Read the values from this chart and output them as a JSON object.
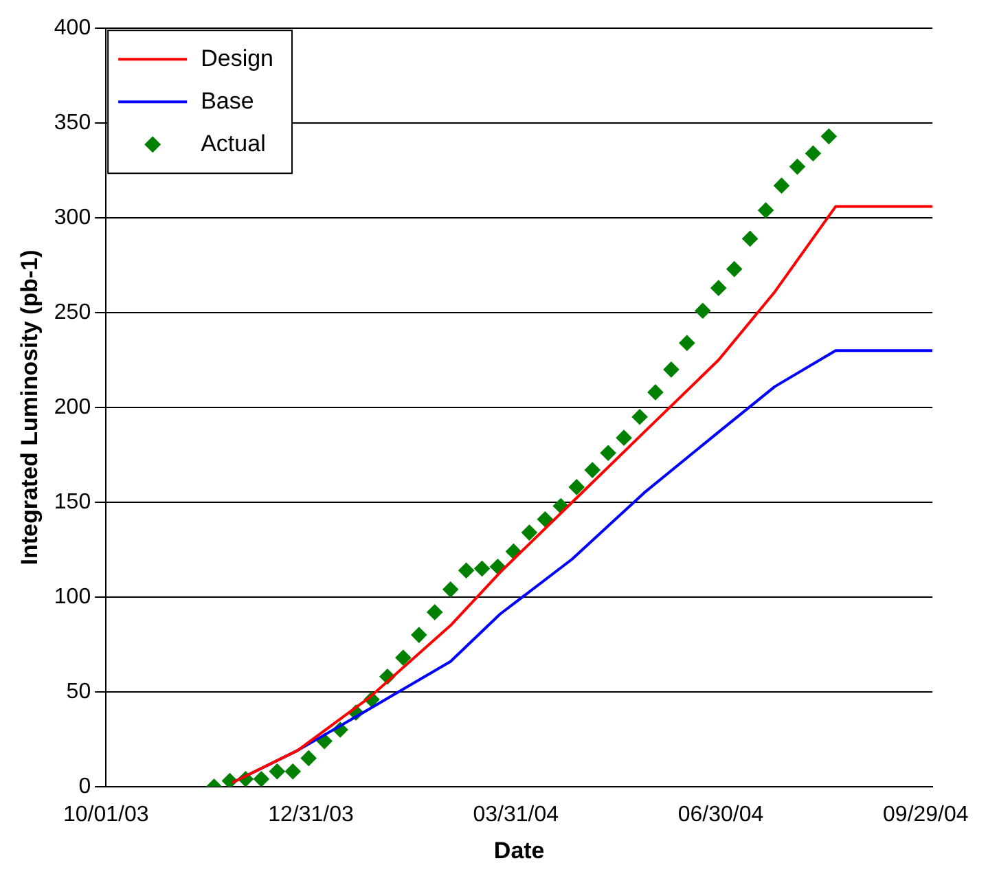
{
  "chart_data": {
    "type": "line",
    "xlabel": "Date",
    "ylabel": "Integrated Luminosity (pb-1)",
    "xlim": [
      "2003-10-01",
      "2004-10-02"
    ],
    "xticks": [
      {
        "value": "2003-10-01",
        "label": "10/01/03"
      },
      {
        "value": "2003-12-31",
        "label": "12/31/03"
      },
      {
        "value": "2004-03-31",
        "label": "03/31/04"
      },
      {
        "value": "2004-06-30",
        "label": "06/30/04"
      },
      {
        "value": "2004-09-29",
        "label": "09/29/04"
      }
    ],
    "ylim": [
      0,
      400
    ],
    "yticks": [
      0,
      50,
      100,
      150,
      200,
      250,
      300,
      350,
      400
    ],
    "grid": "y",
    "legend": "top left",
    "series": [
      {
        "name": "Design",
        "type": "line",
        "color": "#ff0000",
        "marker": "none",
        "x": [
          "2003-11-26",
          "2003-12-25",
          "2004-01-26",
          "2004-03-02",
          "2004-03-24",
          "2004-04-25",
          "2004-05-27",
          "2004-06-29",
          "2004-07-24",
          "2004-08-20",
          "2004-10-02"
        ],
        "values": [
          2,
          19,
          47,
          85,
          113,
          150,
          187,
          225,
          261,
          306,
          306
        ]
      },
      {
        "name": "Base",
        "type": "line",
        "color": "#0000ff",
        "marker": "none",
        "x": [
          "2003-11-26",
          "2003-12-25",
          "2004-01-26",
          "2004-03-02",
          "2004-03-24",
          "2004-04-25",
          "2004-05-27",
          "2004-06-29",
          "2004-07-24",
          "2004-08-20",
          "2004-10-02"
        ],
        "values": [
          2,
          19,
          41,
          66,
          91,
          120,
          155,
          187,
          211,
          230,
          230
        ]
      },
      {
        "name": "Actual",
        "type": "scatter",
        "color": "#008000",
        "marker": "diamond",
        "x": [
          "2003-11-18",
          "2003-11-25",
          "2003-12-02",
          "2003-12-09",
          "2003-12-16",
          "2003-12-23",
          "2003-12-30",
          "2004-01-06",
          "2004-01-13",
          "2004-01-20",
          "2004-01-27",
          "2004-02-03",
          "2004-02-10",
          "2004-02-17",
          "2004-02-24",
          "2004-03-02",
          "2004-03-09",
          "2004-03-16",
          "2004-03-23",
          "2004-03-30",
          "2004-04-06",
          "2004-04-13",
          "2004-04-20",
          "2004-04-27",
          "2004-05-04",
          "2004-05-11",
          "2004-05-18",
          "2004-05-25",
          "2004-06-01",
          "2004-06-08",
          "2004-06-15",
          "2004-06-22",
          "2004-06-29",
          "2004-07-06",
          "2004-07-13",
          "2004-07-20",
          "2004-07-27",
          "2004-08-03",
          "2004-08-10",
          "2004-08-17"
        ],
        "values": [
          0,
          3,
          4,
          4,
          8,
          8,
          15,
          24,
          30,
          39,
          46,
          58,
          68,
          80,
          92,
          104,
          114,
          115,
          116,
          124,
          134,
          141,
          148,
          158,
          167,
          176,
          184,
          195,
          208,
          220,
          234,
          251,
          263,
          273,
          289,
          304,
          317,
          327,
          334,
          343
        ]
      }
    ]
  }
}
